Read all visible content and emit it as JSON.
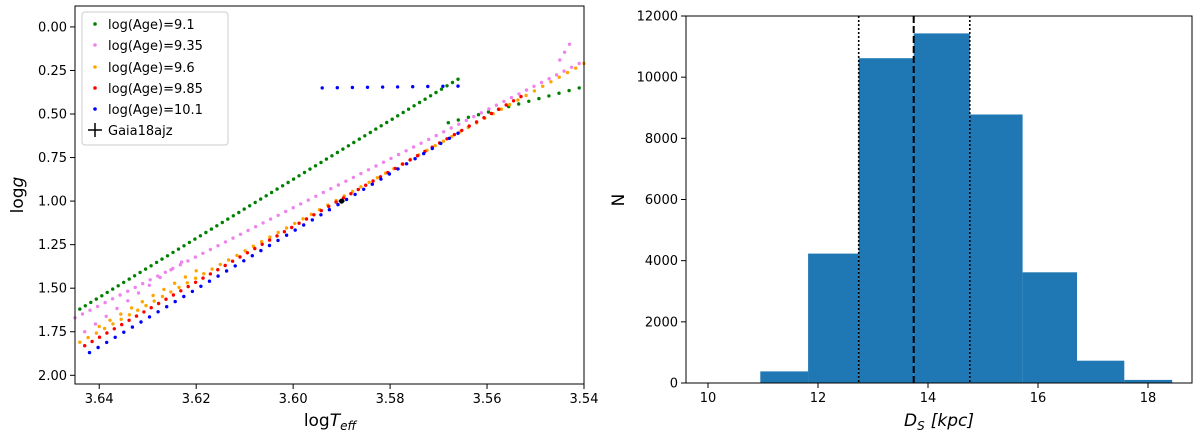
{
  "chart_data": [
    {
      "type": "scatter",
      "xlabel": "log",
      "xlabel_var": "T",
      "xlabel_sub": "eff",
      "ylabel": "log",
      "ylabel_var": "g",
      "xlim": [
        3.645,
        3.54
      ],
      "ylim": [
        2.05,
        -0.12
      ],
      "x_inverted": true,
      "y_inverted": true,
      "xticks": [
        3.64,
        3.62,
        3.6,
        3.58,
        3.56,
        3.54
      ],
      "xtick_labels": [
        "3.64",
        "3.62",
        "3.60",
        "3.58",
        "3.56",
        "3.54"
      ],
      "yticks": [
        0.0,
        0.25,
        0.5,
        0.75,
        1.0,
        1.25,
        1.5,
        1.75,
        2.0
      ],
      "ytick_labels": [
        "0.00",
        "0.25",
        "0.50",
        "0.75",
        "1.00",
        "1.25",
        "1.50",
        "1.75",
        "2.00"
      ],
      "grid": false,
      "legend_position": "top-left",
      "series": [
        {
          "name": "log(Age)=9.1",
          "color": "#008000",
          "branches": [
            {
              "x_start": 3.644,
              "y_start": 1.62,
              "x_end": 3.566,
              "y_end": 0.3,
              "n": 70
            },
            {
              "x_start": 3.568,
              "y_start": 0.55,
              "x_end": 3.541,
              "y_end": 0.35,
              "n": 14
            }
          ]
        },
        {
          "name": "log(Age)=9.35",
          "color": "#ee82ee",
          "branches": [
            {
              "x_start": 3.645,
              "y_start": 1.67,
              "x_end": 3.541,
              "y_end": 0.21,
              "n": 68
            },
            {
              "x_start": 3.643,
              "y_start": 1.75,
              "x_end": 3.623,
              "y_end": 1.35,
              "n": 10
            },
            {
              "x_start": 3.545,
              "y_start": 0.19,
              "x_end": 3.543,
              "y_end": 0.1,
              "n": 3
            }
          ]
        },
        {
          "name": "log(Age)=9.6",
          "color": "#ffa500",
          "branches": [
            {
              "x_start": 3.644,
              "y_start": 1.81,
              "x_end": 3.54,
              "y_end": 0.21,
              "n": 62
            },
            {
              "x_start": 3.64,
              "y_start": 1.72,
              "x_end": 3.62,
              "y_end": 1.4,
              "n": 10
            }
          ]
        },
        {
          "name": "log(Age)=9.85",
          "color": "#ff0000",
          "branches": [
            {
              "x_start": 3.643,
              "y_start": 1.83,
              "x_end": 3.553,
              "y_end": 0.4,
              "n": 60
            }
          ]
        },
        {
          "name": "log(Age)=10.1",
          "color": "#0000ff",
          "branches": [
            {
              "x_start": 3.642,
              "y_start": 1.87,
              "x_end": 3.566,
              "y_end": 0.61,
              "n": 44
            },
            {
              "x_start": 3.594,
              "y_start": 0.35,
              "x_end": 3.566,
              "y_end": 0.34,
              "n": 10
            }
          ]
        }
      ],
      "point": {
        "name": "Gaia18ajz",
        "x": 3.59,
        "y": 1.0,
        "color": "#000000"
      }
    },
    {
      "type": "bar",
      "xlabel_var": "D",
      "xlabel_sub": "S",
      "xlabel_unit": "[kpc]",
      "ylabel": "N",
      "xlim": [
        9.6,
        18.8
      ],
      "ylim": [
        0,
        12000
      ],
      "xticks": [
        10,
        12,
        14,
        16,
        18
      ],
      "xtick_labels": [
        "10",
        "12",
        "14",
        "16",
        "18"
      ],
      "yticks": [
        0,
        2000,
        4000,
        6000,
        8000,
        10000,
        12000
      ],
      "ytick_labels": [
        "0",
        "2000",
        "4000",
        "6000",
        "8000",
        "10000",
        "12000"
      ],
      "grid": false,
      "bar_color": "#1f77b4",
      "bin_edges": [
        10.95,
        11.82,
        12.74,
        13.74,
        14.76,
        15.72,
        16.71,
        17.57
      ],
      "counts": [
        380,
        4230,
        10620,
        11430,
        8780,
        3620,
        730,
        100
      ],
      "vlines": [
        {
          "x": 12.74,
          "style": "dotted"
        },
        {
          "x": 13.74,
          "style": "dashed"
        },
        {
          "x": 14.76,
          "style": "dotted"
        }
      ]
    }
  ]
}
